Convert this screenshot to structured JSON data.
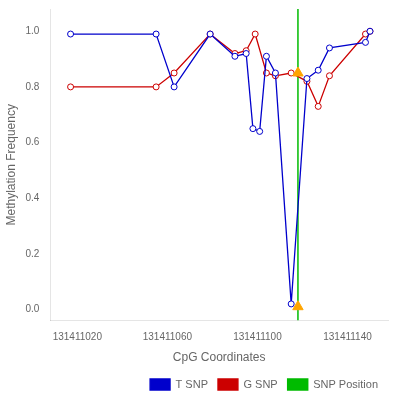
{
  "chart_data": {
    "type": "line",
    "xlabel": "CpG Coordinates",
    "ylabel": "Methylation Frequency",
    "xlim": [
      131411008,
      131411158
    ],
    "ylim": [
      -0.04,
      1.08
    ],
    "xticks": [
      131411020,
      131411060,
      131411100,
      131411140
    ],
    "yticks": [
      {
        "value": 0.0,
        "label": "0.0"
      },
      0.2,
      0.4,
      0.6,
      0.8,
      {
        "value": 1.0,
        "label": "1.0"
      }
    ],
    "grid": false,
    "legend": "lower right",
    "series": [
      {
        "name": "T SNP",
        "type": "line",
        "marker": "circle",
        "color": "#0000cc",
        "x": [
          131411017,
          131411055,
          131411063,
          131411079,
          131411090,
          131411095,
          131411098,
          131411101,
          131411104,
          131411108,
          131411115,
          131411122,
          131411127,
          131411132,
          131411148,
          131411150
        ],
        "values": [
          0.99,
          0.99,
          0.8,
          0.99,
          0.91,
          0.92,
          0.65,
          0.64,
          0.91,
          0.85,
          0.02,
          0.83,
          0.86,
          0.94,
          0.96,
          1.0
        ]
      },
      {
        "name": "G SNP",
        "type": "line",
        "marker": "circle",
        "color": "#cc0000",
        "x": [
          131411017,
          131411055,
          131411063,
          131411079,
          131411090,
          131411095,
          131411099,
          131411104,
          131411108,
          131411115,
          131411122,
          131411127,
          131411132,
          131411148,
          131411150
        ],
        "values": [
          0.8,
          0.8,
          0.85,
          0.99,
          0.92,
          0.93,
          0.99,
          0.85,
          0.84,
          0.85,
          0.82,
          0.73,
          0.84,
          0.99,
          1.0
        ]
      },
      {
        "name": "SNP Position",
        "type": "vline",
        "color": "#00bb00",
        "x": 131411118
      },
      {
        "type": "scatter",
        "marker": "triangle",
        "color": "#FFA500",
        "x": [
          131411118,
          131411118
        ],
        "values": [
          0.85,
          0.01
        ]
      }
    ]
  }
}
